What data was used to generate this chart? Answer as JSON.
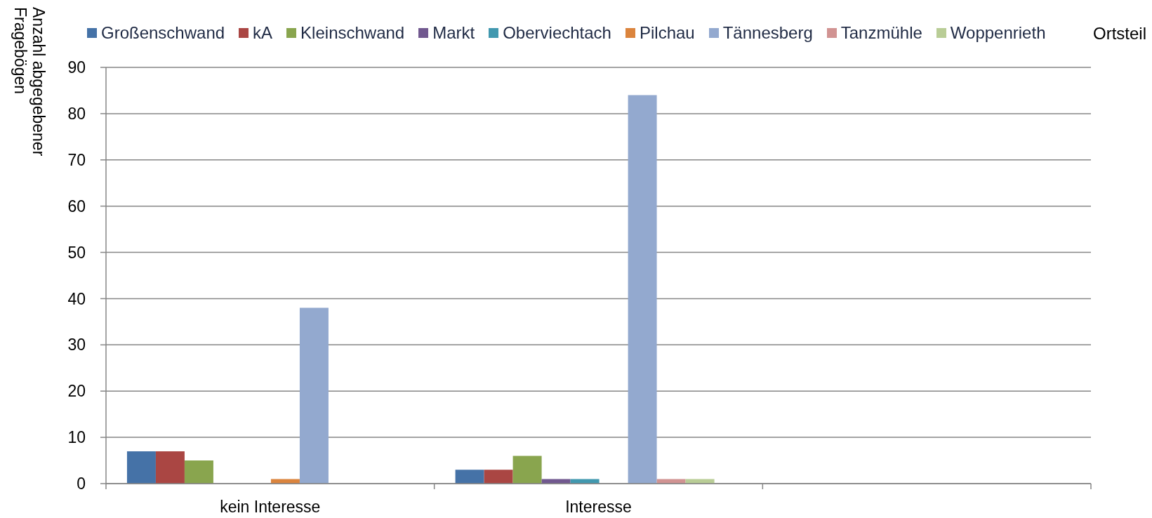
{
  "chart_data": {
    "type": "bar",
    "ylabel": "Anzahl abgegebener Fragebögen",
    "legend_title": "Ortsteil",
    "categories": [
      "kein Interesse",
      "Interesse",
      null
    ],
    "series": [
      {
        "name": "Großenschwand",
        "color": "#4572a7",
        "values": [
          7,
          3,
          null
        ]
      },
      {
        "name": "kA",
        "color": "#aa4643",
        "values": [
          7,
          3,
          null
        ]
      },
      {
        "name": "Kleinschwand",
        "color": "#89a54e",
        "values": [
          5,
          6,
          null
        ]
      },
      {
        "name": "Markt",
        "color": "#71588f",
        "values": [
          null,
          1,
          null
        ]
      },
      {
        "name": "Oberviechtach",
        "color": "#4198af",
        "values": [
          null,
          1,
          null
        ]
      },
      {
        "name": "Pilchau",
        "color": "#db843d",
        "values": [
          1,
          null,
          null
        ]
      },
      {
        "name": "Tännesberg",
        "color": "#93a9cf",
        "values": [
          38,
          84,
          null
        ]
      },
      {
        "name": "Tanzmühle",
        "color": "#d19392",
        "values": [
          null,
          1,
          null
        ]
      },
      {
        "name": "Woppenrieth",
        "color": "#b9cd96",
        "values": [
          null,
          1,
          null
        ]
      }
    ],
    "ylim": [
      0,
      90
    ],
    "yticks": [
      0,
      10,
      20,
      30,
      40,
      50,
      60,
      70,
      80,
      90
    ],
    "grid": "y",
    "legend": "top"
  }
}
